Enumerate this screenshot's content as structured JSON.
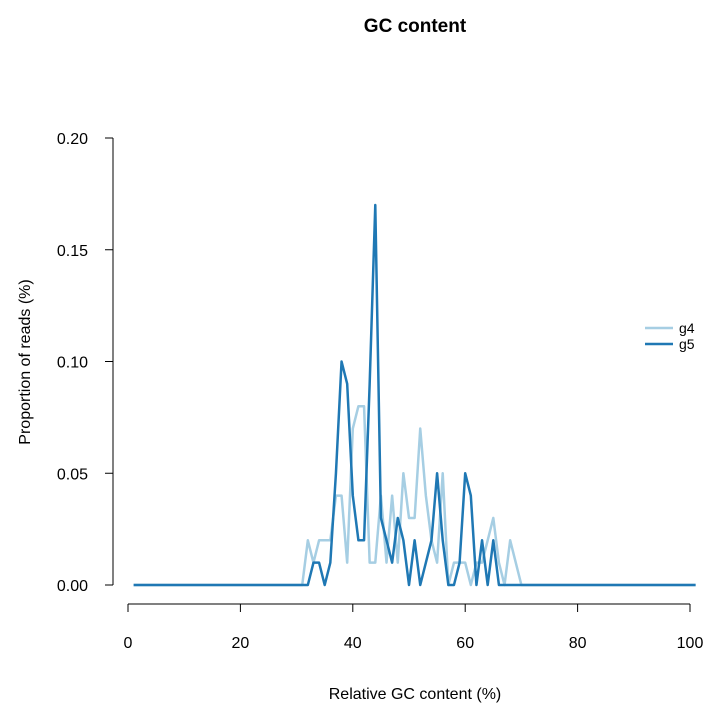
{
  "chart_data": {
    "type": "line",
    "title": "GC content",
    "xlabel": "Relative GC content (%)",
    "ylabel": "Proportion of reads (%)",
    "xlim": [
      1,
      101
    ],
    "ylim": [
      0,
      0.2
    ],
    "xticks": [
      0,
      20,
      40,
      60,
      80,
      100
    ],
    "xtick_labels": [
      "0",
      "20",
      "40",
      "60",
      "80",
      "100"
    ],
    "yticks": [
      0,
      0.05,
      0.1,
      0.15,
      0.2
    ],
    "ytick_labels": [
      "0.00",
      "0.05",
      "0.10",
      "0.15",
      "0.20"
    ],
    "grid": false,
    "legend_position": "right",
    "series": [
      {
        "name": "g4",
        "color": "#a6cee3",
        "points": [
          [
            1,
            0
          ],
          [
            31,
            0
          ],
          [
            32,
            0.02
          ],
          [
            33,
            0.01
          ],
          [
            34,
            0.02
          ],
          [
            35,
            0.02
          ],
          [
            36,
            0.02
          ],
          [
            37,
            0.04
          ],
          [
            38,
            0.04
          ],
          [
            39,
            0.01
          ],
          [
            40,
            0.07
          ],
          [
            41,
            0.08
          ],
          [
            42,
            0.08
          ],
          [
            43,
            0.01
          ],
          [
            44,
            0.01
          ],
          [
            45,
            0.04
          ],
          [
            46,
            0.01
          ],
          [
            47,
            0.04
          ],
          [
            48,
            0.01
          ],
          [
            49,
            0.05
          ],
          [
            50,
            0.03
          ],
          [
            51,
            0.03
          ],
          [
            52,
            0.07
          ],
          [
            53,
            0.04
          ],
          [
            54,
            0.02
          ],
          [
            55,
            0.01
          ],
          [
            56,
            0.05
          ],
          [
            57,
            0
          ],
          [
            58,
            0.01
          ],
          [
            59,
            0.01
          ],
          [
            60,
            0.01
          ],
          [
            61,
            0
          ],
          [
            62,
            0.01
          ],
          [
            63,
            0.01
          ],
          [
            64,
            0.02
          ],
          [
            65,
            0.03
          ],
          [
            66,
            0.01
          ],
          [
            67,
            0
          ],
          [
            68,
            0.02
          ],
          [
            69,
            0.01
          ],
          [
            70,
            0
          ],
          [
            101,
            0
          ]
        ]
      },
      {
        "name": "g5",
        "color": "#1f78b4",
        "points": [
          [
            1,
            0
          ],
          [
            32,
            0
          ],
          [
            33,
            0.01
          ],
          [
            34,
            0.01
          ],
          [
            35,
            0
          ],
          [
            36,
            0.01
          ],
          [
            37,
            0.05
          ],
          [
            38,
            0.1
          ],
          [
            39,
            0.09
          ],
          [
            40,
            0.04
          ],
          [
            41,
            0.02
          ],
          [
            42,
            0.02
          ],
          [
            43,
            0.09
          ],
          [
            44,
            0.17
          ],
          [
            45,
            0.03
          ],
          [
            46,
            0.02
          ],
          [
            47,
            0.01
          ],
          [
            48,
            0.03
          ],
          [
            49,
            0.02
          ],
          [
            50,
            0
          ],
          [
            51,
            0.02
          ],
          [
            52,
            0
          ],
          [
            53,
            0.01
          ],
          [
            54,
            0.02
          ],
          [
            55,
            0.05
          ],
          [
            56,
            0.02
          ],
          [
            57,
            0
          ],
          [
            58,
            0
          ],
          [
            59,
            0.01
          ],
          [
            60,
            0.05
          ],
          [
            61,
            0.04
          ],
          [
            62,
            0
          ],
          [
            63,
            0.02
          ],
          [
            64,
            0
          ],
          [
            65,
            0.02
          ],
          [
            66,
            0
          ],
          [
            101,
            0
          ]
        ]
      }
    ]
  }
}
